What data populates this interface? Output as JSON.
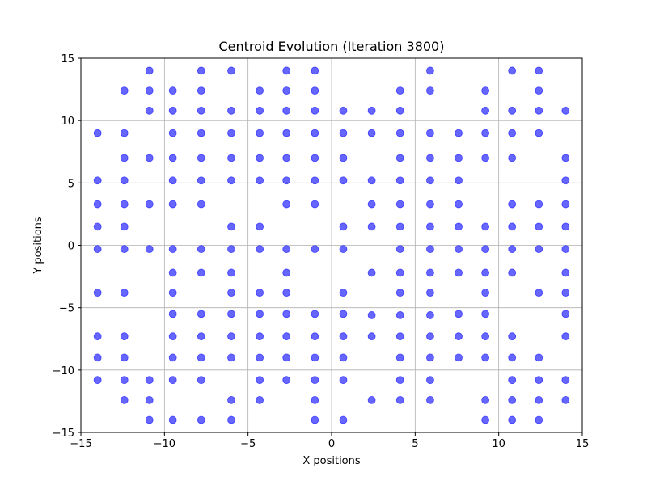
{
  "chart_data": {
    "type": "scatter",
    "title": "Centroid Evolution (Iteration 3800)",
    "xlabel": "X positions",
    "ylabel": "Y positions",
    "xlim": [
      -15,
      15
    ],
    "ylim": [
      -15,
      15
    ],
    "xticks": [
      -15,
      -10,
      -5,
      0,
      5,
      10,
      15
    ],
    "yticks": [
      -15,
      -10,
      -5,
      0,
      5,
      10,
      15
    ],
    "xtick_labels": [
      "−15",
      "−10",
      "−5",
      "0",
      "5",
      "10",
      "15"
    ],
    "ytick_labels": [
      "−15",
      "−10",
      "−5",
      "0",
      "5",
      "10",
      "15"
    ],
    "grid": true,
    "point_color": "#0000ff",
    "point_alpha": 0.6,
    "x_columns": [
      -14.0,
      -12.4,
      -10.9,
      -9.5,
      -7.8,
      -6.0,
      -4.3,
      -2.7,
      -1.0,
      0.7,
      2.4,
      4.1,
      5.9,
      7.6,
      9.2,
      10.8,
      12.4,
      14.0
    ],
    "points": [
      [
        -14.0,
        9.0
      ],
      [
        -14.0,
        5.2
      ],
      [
        -14.0,
        3.3
      ],
      [
        -14.0,
        1.5
      ],
      [
        -14.0,
        -0.3
      ],
      [
        -14.0,
        -3.8
      ],
      [
        -14.0,
        -7.3
      ],
      [
        -14.0,
        -9.0
      ],
      [
        -14.0,
        -10.8
      ],
      [
        -12.4,
        12.4
      ],
      [
        -12.4,
        9.0
      ],
      [
        -12.4,
        7.0
      ],
      [
        -12.4,
        5.2
      ],
      [
        -12.4,
        3.3
      ],
      [
        -12.4,
        1.5
      ],
      [
        -12.4,
        -0.3
      ],
      [
        -12.4,
        -3.8
      ],
      [
        -12.4,
        -7.3
      ],
      [
        -12.4,
        -9.0
      ],
      [
        -12.4,
        -10.8
      ],
      [
        -12.4,
        -12.4
      ],
      [
        -10.9,
        14.0
      ],
      [
        -10.9,
        12.4
      ],
      [
        -10.9,
        10.8
      ],
      [
        -10.9,
        7.0
      ],
      [
        -10.9,
        3.3
      ],
      [
        -10.9,
        -0.3
      ],
      [
        -10.9,
        -10.8
      ],
      [
        -10.9,
        -12.4
      ],
      [
        -10.9,
        -14.0
      ],
      [
        -9.5,
        12.4
      ],
      [
        -9.5,
        10.8
      ],
      [
        -9.5,
        9.0
      ],
      [
        -9.5,
        7.0
      ],
      [
        -9.5,
        5.2
      ],
      [
        -9.5,
        3.3
      ],
      [
        -9.5,
        -0.3
      ],
      [
        -9.5,
        -2.2
      ],
      [
        -9.5,
        -3.8
      ],
      [
        -9.5,
        -5.5
      ],
      [
        -9.5,
        -7.3
      ],
      [
        -9.5,
        -9.0
      ],
      [
        -9.5,
        -10.8
      ],
      [
        -9.5,
        -14.0
      ],
      [
        -7.8,
        14.0
      ],
      [
        -7.8,
        12.4
      ],
      [
        -7.8,
        10.8
      ],
      [
        -7.8,
        9.0
      ],
      [
        -7.8,
        7.0
      ],
      [
        -7.8,
        5.2
      ],
      [
        -7.8,
        3.3
      ],
      [
        -7.8,
        -0.3
      ],
      [
        -7.8,
        -2.2
      ],
      [
        -7.8,
        -5.5
      ],
      [
        -7.8,
        -7.3
      ],
      [
        -7.8,
        -9.0
      ],
      [
        -7.8,
        -10.8
      ],
      [
        -7.8,
        -14.0
      ],
      [
        -6.0,
        14.0
      ],
      [
        -6.0,
        10.8
      ],
      [
        -6.0,
        9.0
      ],
      [
        -6.0,
        7.0
      ],
      [
        -6.0,
        5.2
      ],
      [
        -6.0,
        1.5
      ],
      [
        -6.0,
        -0.3
      ],
      [
        -6.0,
        -2.2
      ],
      [
        -6.0,
        -3.8
      ],
      [
        -6.0,
        -5.5
      ],
      [
        -6.0,
        -7.3
      ],
      [
        -6.0,
        -9.0
      ],
      [
        -6.0,
        -12.4
      ],
      [
        -6.0,
        -14.0
      ],
      [
        -4.3,
        12.4
      ],
      [
        -4.3,
        10.8
      ],
      [
        -4.3,
        9.0
      ],
      [
        -4.3,
        7.0
      ],
      [
        -4.3,
        5.2
      ],
      [
        -4.3,
        1.5
      ],
      [
        -4.3,
        -0.3
      ],
      [
        -4.3,
        -3.8
      ],
      [
        -4.3,
        -5.5
      ],
      [
        -4.3,
        -7.3
      ],
      [
        -4.3,
        -9.0
      ],
      [
        -4.3,
        -10.8
      ],
      [
        -4.3,
        -12.4
      ],
      [
        -2.7,
        14.0
      ],
      [
        -2.7,
        12.4
      ],
      [
        -2.7,
        10.8
      ],
      [
        -2.7,
        9.0
      ],
      [
        -2.7,
        7.0
      ],
      [
        -2.7,
        5.2
      ],
      [
        -2.7,
        3.3
      ],
      [
        -2.7,
        -0.3
      ],
      [
        -2.7,
        -2.2
      ],
      [
        -2.7,
        -3.8
      ],
      [
        -2.7,
        -5.5
      ],
      [
        -2.7,
        -7.3
      ],
      [
        -2.7,
        -9.0
      ],
      [
        -2.7,
        -10.8
      ],
      [
        -1.0,
        14.0
      ],
      [
        -1.0,
        12.4
      ],
      [
        -1.0,
        10.8
      ],
      [
        -1.0,
        9.0
      ],
      [
        -1.0,
        7.0
      ],
      [
        -1.0,
        5.2
      ],
      [
        -1.0,
        3.3
      ],
      [
        -1.0,
        -0.3
      ],
      [
        -1.0,
        -5.5
      ],
      [
        -1.0,
        -7.3
      ],
      [
        -1.0,
        -9.0
      ],
      [
        -1.0,
        -10.8
      ],
      [
        -1.0,
        -12.4
      ],
      [
        -1.0,
        -14.0
      ],
      [
        0.7,
        10.8
      ],
      [
        0.7,
        9.0
      ],
      [
        0.7,
        7.0
      ],
      [
        0.7,
        5.2
      ],
      [
        0.7,
        1.5
      ],
      [
        0.7,
        -0.3
      ],
      [
        0.7,
        -3.8
      ],
      [
        0.7,
        -5.5
      ],
      [
        0.7,
        -7.3
      ],
      [
        0.7,
        -9.0
      ],
      [
        0.7,
        -10.8
      ],
      [
        0.7,
        -14.0
      ],
      [
        2.4,
        10.8
      ],
      [
        2.4,
        9.0
      ],
      [
        2.4,
        5.2
      ],
      [
        2.4,
        3.3
      ],
      [
        2.4,
        1.5
      ],
      [
        2.4,
        -2.2
      ],
      [
        2.4,
        -5.6
      ],
      [
        2.4,
        -7.3
      ],
      [
        2.4,
        -12.4
      ],
      [
        4.1,
        12.4
      ],
      [
        4.1,
        10.8
      ],
      [
        4.1,
        9.0
      ],
      [
        4.1,
        7.0
      ],
      [
        4.1,
        5.2
      ],
      [
        4.1,
        3.3
      ],
      [
        4.1,
        1.5
      ],
      [
        4.1,
        -0.3
      ],
      [
        4.1,
        -2.2
      ],
      [
        4.1,
        -3.8
      ],
      [
        4.1,
        -5.6
      ],
      [
        4.1,
        -7.3
      ],
      [
        4.1,
        -9.0
      ],
      [
        4.1,
        -10.8
      ],
      [
        4.1,
        -12.4
      ],
      [
        5.9,
        14.0
      ],
      [
        5.9,
        12.4
      ],
      [
        5.9,
        9.0
      ],
      [
        5.9,
        7.0
      ],
      [
        5.9,
        5.2
      ],
      [
        5.9,
        3.3
      ],
      [
        5.9,
        1.5
      ],
      [
        5.9,
        -0.3
      ],
      [
        5.9,
        -2.2
      ],
      [
        5.9,
        -3.8
      ],
      [
        5.9,
        -5.6
      ],
      [
        5.9,
        -7.3
      ],
      [
        5.9,
        -9.0
      ],
      [
        5.9,
        -10.8
      ],
      [
        5.9,
        -12.4
      ],
      [
        7.6,
        9.0
      ],
      [
        7.6,
        7.0
      ],
      [
        7.6,
        5.2
      ],
      [
        7.6,
        3.3
      ],
      [
        7.6,
        1.5
      ],
      [
        7.6,
        -0.3
      ],
      [
        7.6,
        -2.2
      ],
      [
        7.6,
        -5.5
      ],
      [
        7.6,
        -7.3
      ],
      [
        7.6,
        -9.0
      ],
      [
        9.2,
        12.4
      ],
      [
        9.2,
        10.8
      ],
      [
        9.2,
        9.0
      ],
      [
        9.2,
        7.0
      ],
      [
        9.2,
        1.5
      ],
      [
        9.2,
        -0.3
      ],
      [
        9.2,
        -2.2
      ],
      [
        9.2,
        -3.8
      ],
      [
        9.2,
        -5.5
      ],
      [
        9.2,
        -7.3
      ],
      [
        9.2,
        -9.0
      ],
      [
        9.2,
        -12.4
      ],
      [
        9.2,
        -14.0
      ],
      [
        10.8,
        14.0
      ],
      [
        10.8,
        10.8
      ],
      [
        10.8,
        9.0
      ],
      [
        10.8,
        7.0
      ],
      [
        10.8,
        3.3
      ],
      [
        10.8,
        1.5
      ],
      [
        10.8,
        -0.3
      ],
      [
        10.8,
        -2.2
      ],
      [
        10.8,
        -7.3
      ],
      [
        10.8,
        -9.0
      ],
      [
        10.8,
        -10.8
      ],
      [
        10.8,
        -12.4
      ],
      [
        10.8,
        -14.0
      ],
      [
        12.4,
        14.0
      ],
      [
        12.4,
        12.4
      ],
      [
        12.4,
        10.8
      ],
      [
        12.4,
        9.0
      ],
      [
        12.4,
        3.3
      ],
      [
        12.4,
        1.5
      ],
      [
        12.4,
        -0.3
      ],
      [
        12.4,
        -3.8
      ],
      [
        12.4,
        -9.0
      ],
      [
        12.4,
        -10.8
      ],
      [
        12.4,
        -12.4
      ],
      [
        12.4,
        -14.0
      ],
      [
        14.0,
        10.8
      ],
      [
        14.0,
        7.0
      ],
      [
        14.0,
        5.2
      ],
      [
        14.0,
        3.3
      ],
      [
        14.0,
        1.5
      ],
      [
        14.0,
        -0.3
      ],
      [
        14.0,
        -2.2
      ],
      [
        14.0,
        -3.8
      ],
      [
        14.0,
        -5.5
      ],
      [
        14.0,
        -7.3
      ],
      [
        14.0,
        -10.8
      ],
      [
        14.0,
        -12.4
      ]
    ]
  }
}
